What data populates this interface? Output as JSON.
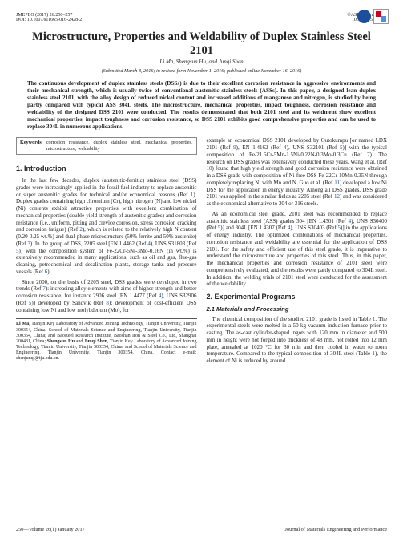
{
  "header": {
    "left1": "JMEPEG (2017) 26:250–257",
    "left2": "DOI: 10.1007/s11665-016-2428-2",
    "right1": "©ASM International",
    "right2": "1059-9495/$19.00"
  },
  "title": "Microstructure, Properties and Weldability of Duplex Stainless Steel 2101",
  "authors": "Li Ma, Shengsun Hu, and Junqi Shen",
  "submitted": "(Submitted March 8, 2016; in revised form November 1, 2016; published online November 16, 2016)",
  "abstract": "The continuous development of duplex stainless steels (DSSs) is due to their excellent corrosion resistance in aggressive environments and their mechanical strength, which is usually twice of conventional austenitic stainless steels (ASSs). In this paper, a designed lean duplex stainless steel 2101, with the alloy design of reduced nickel content and increased additions of manganese and nitrogen, is studied by being partly compared with typical ASS 304L steels. The microstructure, mechanical properties, impact toughness, corrosion resistance and weldability of the designed DSS 2101 were conducted. The results demonstrated that both 2101 steel and its weldment show excellent mechanical properties, impact toughness and corrosion resistance, so DSS 2101 exhibits good comprehensive properties and can be used to replace 304L in numerous applications.",
  "keywords": {
    "label": "Keywords",
    "text": "corrosion resistance, duplex stainless steel, mechanical properties, microstructure, weldability"
  },
  "sec1": {
    "heading": "1. Introduction"
  },
  "p1a": "In the last few decades, duplex (austenitic-ferritic) stainless steel (DSS) grades were increasingly applied in the fossil fuel industry to replace austenitic or super austenitic grades for technical and/or economical reasons (Ref ",
  "r1": "1",
  "p1b": "). Duplex grades containing high chromium (Cr), high nitrogen (N) and low nickel (Ni) contents exhibit attractive properties with excellent combination of mechanical properties (double yield strength of austenitic grades) and corrosion resistance (i.e., uniform, pitting and crevice corrosion, stress corrosion cracking and corrosion fatigue) (Ref ",
  "r2": "2",
  "p1c": "), which is related to the relatively high N content (0.20-0.25 wt.%) and dual-phase microstructure (50% ferrite and 50% austenite) (Ref ",
  "r3": "3",
  "p1d": "). In the group of DSS, 2205 steel [EN 1.4462 (Ref ",
  "r4": "4",
  "p1e": "), UNS S31803 (Ref ",
  "r5": "5",
  "p1f": ")] with the composition system of Fe-22Cr-5Ni-3Mo-0.16N (in wt.%) is extensively recommended in many applications, such as oil and gas, flue-gas cleaning, petrochemical and desalination plants, storage tanks and pressure vessels (Ref ",
  "r6": "6",
  "p1g": ").",
  "p2a": "Since 2000, on the basis of 2205 steel, DSS grades were developed in two trends (Ref ",
  "r7": "7",
  "p2b": "): increasing alloy elements with aims of higher strength and better corrosion resistance, for instance 2906 steel [EN 1.4477 (Ref ",
  "r4b": "4",
  "p2c": "), UNS S32906 (Ref ",
  "r5b": "5",
  "p2d": ")] developed by Sandvik (Ref ",
  "r8": "8",
  "p2e": "); development of cost-efficient DSS containing low Ni and low molybdenum (Mo), for",
  "affil": "Li Ma, Tianjin Key Laboratory of Advanced Joining Technology, Tianjin University, Tianjin 300354, China; School of Materials Science and Engineering, Tianjin University, Tianjin 300354, China; and Baosteel Research Institute, Baoshan Iron & Steel Co., Ltd, Shanghai 200431, China; Shengsun Hu and Junqi Shen, Tianjin Key Laboratory of Advanced Joining Technology, Tianjin University, Tianjin 300354, China; and School of Materials Science and Engineering, Tianjin University, Tianjin 300354, China. Contact e-mail: shenjunqi@tju.edu.cn.",
  "p3a": "example an economical DSS 2101 developed by Outokumpu [or named LDX 2101 (Ref ",
  "r9": "9",
  "p3b": "), EN 1.4162 (Ref ",
  "r4c": "4",
  "p3c": "), UNS S32101 (Ref ",
  "r5c": "5",
  "p3d": ")] with the typical composition of Fe-21.5Cr-5Mn-1.5Ni-0.22N-0.3Mo-0.3Cu (Ref ",
  "r7b": "7",
  "p3e": "). The research on DSS grades was extensively conducted these years. Wang et al. (Ref ",
  "r10": "10",
  "p3f": ") found that high yield strength and good corrosion resistance were obtained in a DSS grade with composition of Ni-free DSS Fe-22Cr-10Mn-0.35N through completely replacing Ni with Mn and N. Guo et al. (Ref ",
  "r11": "11",
  "p3g": ") developed a low Ni DSS for the application in energy industry. Among all DSS grades, DSS grade 2101 was applied in the similar fields as 2205 steel (Ref ",
  "r12": "12",
  "p3h": ") and was considered as the economical alternative to 304 or 316 steels.",
  "p4a": "As an economical steel grade, 2101 steel was recommended to replace austenitic stainless steel (ASS) grades 304 [EN 1.4301 (Ref ",
  "r4d": "4",
  "p4b": "), UNS S30400 (Ref ",
  "r5d": "5",
  "p4c": ")] and 304L [EN 1.4307 (Ref ",
  "r4e": "4",
  "p4d": "), UNS S30403 (Ref ",
  "r5e": "5",
  "p4e": ")] in the applications of energy industry. The optimized combinations of mechanical properties, corrosion resistance and weldability are essential for the application of DSS 2101. For the safety and efficient use of this steel grade, it is imperative to understand the microstructure and properties of this steel. Thus, in this paper, the mechanical properties and corrosion resistance of 2101 steel were comprehensively evaluated, and the results were partly compared to 304L steel. In addition, the welding trials of 2101 steel were conducted for the assessment of the weldability.",
  "sec2": {
    "heading": "2. Experimental Programs"
  },
  "sec21": {
    "heading": "2.1 Materials and Processing"
  },
  "p5a": "The chemical composition of the studied 2101 grade is listed in Table ",
  "t1": "1",
  "p5b": ". The experimental steels were melted in a 50-kg vacuum induction furnace prior to casting. The as-cast cylinder-shaped ingots with 120 mm in diameter and 500 mm in height were hot forged into thickness of 48 mm, hot rolled into 12 mm plate, annealed at 1020 °C for 30 min and then cooled in water to room temperature. Compared to the typical composition of 304L steel (Table ",
  "t1b": "1",
  "p5c": "), the element of Ni is reduced by around",
  "footer": {
    "left": "250—Volume 26(1) January 2017",
    "right": "Journal of Materials Engineering and Performance"
  }
}
